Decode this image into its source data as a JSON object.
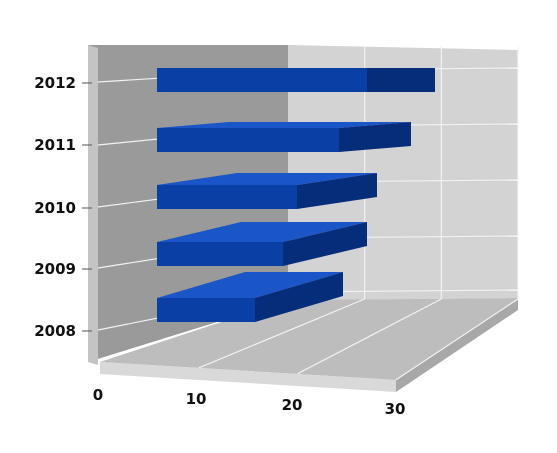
{
  "chart_data": {
    "type": "bar",
    "orientation": "horizontal",
    "style": "3d",
    "categories": [
      "2008",
      "2009",
      "2010",
      "2011",
      "2012"
    ],
    "values": [
      14,
      18,
      20,
      26,
      30
    ],
    "xlim": [
      0,
      30
    ],
    "x_ticks": [
      "0",
      "10",
      "20",
      "30"
    ],
    "grid": true,
    "legend": "none",
    "colors": {
      "bar_front": "#0a3fa6",
      "bar_top": "#1a56c8",
      "bar_side": "#062d7a",
      "back_wall": "#d3d3d3",
      "side_wall": "#9a9a9a",
      "floor": "#bdbdbd",
      "grid": "#f2f2f2"
    }
  }
}
